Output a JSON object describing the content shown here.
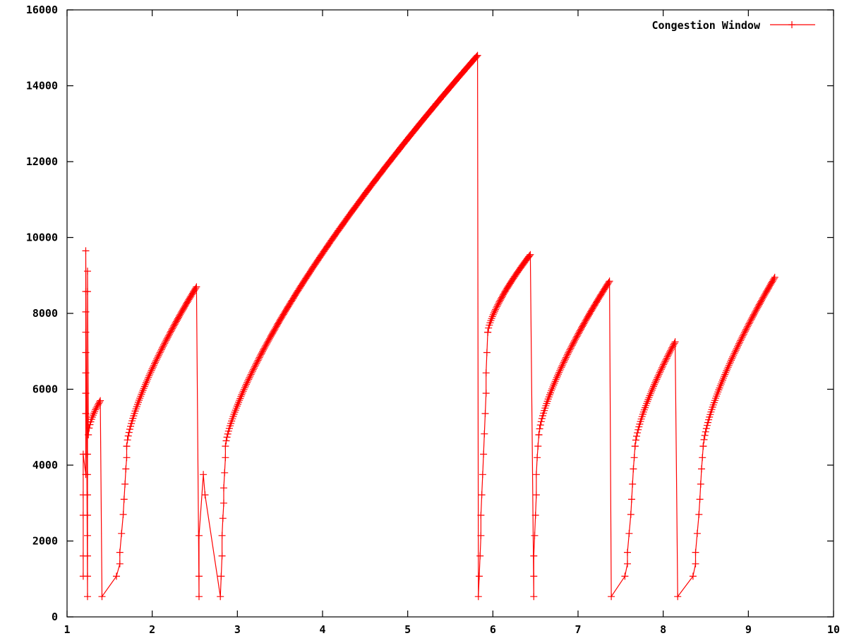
{
  "chart_data": {
    "type": "line",
    "title": "",
    "xlabel": "",
    "ylabel": "",
    "xlim": [
      1,
      10
    ],
    "ylim": [
      0,
      16000
    ],
    "x_ticks": [
      "1",
      "2",
      "3",
      "4",
      "5",
      "6",
      "7",
      "8",
      "9",
      "10"
    ],
    "y_ticks": [
      "0",
      "2000",
      "4000",
      "6000",
      "8000",
      "10000",
      "12000",
      "14000",
      "16000"
    ],
    "grid": false,
    "legend_position": "top-right",
    "series": [
      {
        "name": "Congestion Window",
        "color": "#ff0000",
        "marker": "plus",
        "segments": [
          {
            "kind": "points",
            "x": [
              1.19,
              1.19,
              1.19,
              1.19,
              1.19
            ],
            "y": [
              1072,
              1608,
              2680,
              3216,
              4288
            ]
          },
          {
            "kind": "points",
            "x": [
              1.22,
              1.22,
              1.22,
              1.22,
              1.22,
              1.22,
              1.22,
              1.22,
              1.22,
              1.22
            ],
            "y": [
              3752,
              4288,
              5360,
              5896,
              6432,
              6968,
              7504,
              8040,
              8576,
              9648
            ]
          },
          {
            "kind": "points",
            "x": [
              1.24,
              1.24,
              1.24,
              1.24,
              1.24,
              1.24,
              1.24,
              1.24
            ],
            "y": [
              536,
              1072,
              1608,
              2144,
              2680,
              3216,
              3752,
              4288
            ]
          },
          {
            "kind": "points",
            "x": [
              1.24,
              1.24
            ],
            "y": [
              8576,
              9112
            ]
          },
          {
            "kind": "curve",
            "x0": 1.25,
            "x1": 1.39,
            "y0": 4800,
            "y1": 5700,
            "p": 0.6
          },
          {
            "kind": "points",
            "x": [
              1.41,
              1.58,
              1.62
            ],
            "y": [
              536,
              1072,
              1400
            ]
          },
          {
            "kind": "points",
            "x": [
              1.62,
              1.64,
              1.66,
              1.67,
              1.68,
              1.69,
              1.7,
              1.7
            ],
            "y": [
              1700,
              2200,
              2700,
              3100,
              3500,
              3900,
              4200,
              4500
            ]
          },
          {
            "kind": "curve",
            "x0": 1.7,
            "x1": 2.52,
            "y0": 4500,
            "y1": 8700,
            "p": 0.72
          },
          {
            "kind": "points",
            "x": [
              2.55,
              2.55,
              2.55
            ],
            "y": [
              536,
              1072,
              2144
            ]
          },
          {
            "kind": "points",
            "x": [
              2.6,
              2.62
            ],
            "y": [
              3752,
              3216
            ]
          },
          {
            "kind": "points",
            "x": [
              2.8,
              2.81,
              2.82,
              2.82,
              2.83,
              2.84,
              2.84,
              2.85,
              2.86
            ],
            "y": [
              536,
              1072,
              1608,
              2144,
              2600,
              3000,
              3400,
              3800,
              4200
            ]
          },
          {
            "kind": "curve",
            "x0": 2.86,
            "x1": 5.82,
            "y0": 4500,
            "y1": 14800,
            "p": 0.74
          },
          {
            "kind": "points",
            "x": [
              5.83,
              5.84,
              5.85,
              5.86,
              5.86,
              5.87,
              5.88,
              5.89,
              5.9
            ],
            "y": [
              536,
              1072,
              1608,
              2144,
              2680,
              3216,
              3752,
              4288,
              4824
            ]
          },
          {
            "kind": "points",
            "x": [
              5.91,
              5.92,
              5.92
            ],
            "y": [
              5360,
              5896,
              6432
            ]
          },
          {
            "kind": "points",
            "x": [
              5.93,
              5.94
            ],
            "y": [
              6968,
              7504
            ]
          },
          {
            "kind": "curve",
            "x0": 5.94,
            "x1": 6.44,
            "y0": 7500,
            "y1": 9550,
            "p": 0.72
          },
          {
            "kind": "points",
            "x": [
              6.48,
              6.48,
              6.48,
              6.49,
              6.5,
              6.51,
              6.51,
              6.52,
              6.53,
              6.54
            ],
            "y": [
              536,
              1072,
              1608,
              2144,
              2680,
              3216,
              3752,
              4200,
              4500,
              4800
            ]
          },
          {
            "kind": "curve",
            "x0": 6.54,
            "x1": 7.37,
            "y0": 4800,
            "y1": 8850,
            "p": 0.72
          },
          {
            "kind": "points",
            "x": [
              7.39,
              7.55,
              7.58
            ],
            "y": [
              536,
              1072,
              1400
            ]
          },
          {
            "kind": "points",
            "x": [
              7.58,
              7.6,
              7.62,
              7.63,
              7.64,
              7.65,
              7.66,
              7.67
            ],
            "y": [
              1700,
              2200,
              2700,
              3100,
              3500,
              3900,
              4200,
              4500
            ]
          },
          {
            "kind": "curve",
            "x0": 7.67,
            "x1": 8.14,
            "y0": 4500,
            "y1": 7250,
            "p": 0.72
          },
          {
            "kind": "points",
            "x": [
              8.17,
              8.35,
              8.38
            ],
            "y": [
              536,
              1072,
              1400
            ]
          },
          {
            "kind": "points",
            "x": [
              8.38,
              8.4,
              8.42,
              8.43,
              8.44,
              8.45,
              8.46,
              8.47
            ],
            "y": [
              1700,
              2200,
              2700,
              3100,
              3500,
              3900,
              4200,
              4500
            ]
          },
          {
            "kind": "curve",
            "x0": 8.47,
            "x1": 9.31,
            "y0": 4500,
            "y1": 8950,
            "p": 0.72
          }
        ]
      }
    ]
  }
}
